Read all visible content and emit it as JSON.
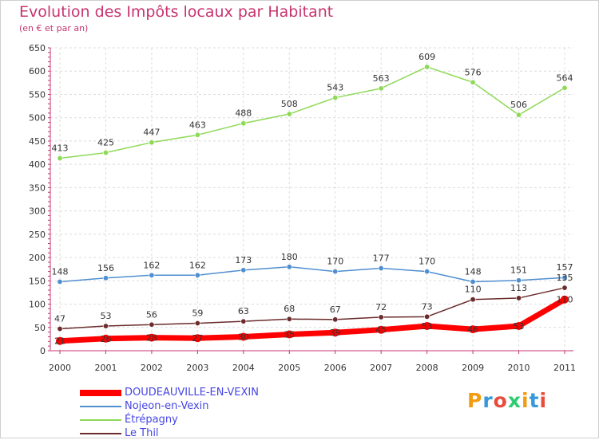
{
  "header": {
    "title": "Evolution des Impôts locaux par Habitant",
    "subtitle": "(en € et par an)"
  },
  "logo": {
    "text": "Proxiti",
    "colors": [
      "#f39c12",
      "#3498db",
      "#e74c3c",
      "#2ecc71"
    ]
  },
  "chart_data": {
    "type": "line",
    "x": [
      "2000",
      "2001",
      "2002",
      "2003",
      "2004",
      "2005",
      "2006",
      "2007",
      "2008",
      "2009",
      "2010",
      "2011"
    ],
    "ylim": [
      0,
      650
    ],
    "yticks": [
      "0",
      "50",
      "100",
      "150",
      "200",
      "250",
      "300",
      "350",
      "400",
      "450",
      "500",
      "550",
      "600",
      "650"
    ],
    "grid": true,
    "legend_position": "bottom-left",
    "series": [
      {
        "name": "DOUDEAUVILLE-EN-VEXIN",
        "color": "#ff0000",
        "values": [
          21,
          26,
          28,
          27,
          30,
          35,
          39,
          45,
          53,
          46,
          53,
          110
        ],
        "labels": [
          "21",
          "26",
          "28",
          "27",
          "30",
          "35",
          "39",
          "45",
          "53",
          "46",
          "53",
          "110"
        ]
      },
      {
        "name": "Nojeon-en-Vexin",
        "color": "#4f8fd0",
        "values": [
          148,
          156,
          162,
          162,
          173,
          180,
          170,
          177,
          170,
          148,
          151,
          157
        ],
        "labels": [
          "148",
          "156",
          "162",
          "162",
          "173",
          "180",
          "170",
          "177",
          "170",
          "148",
          "151",
          "157"
        ]
      },
      {
        "name": "Étrépagny",
        "color": "#8ed957",
        "values": [
          413,
          425,
          447,
          463,
          488,
          508,
          543,
          563,
          609,
          576,
          506,
          564
        ],
        "labels": [
          "413",
          "425",
          "447",
          "463",
          "488",
          "508",
          "543",
          "563",
          "609",
          "576",
          "506",
          "564"
        ]
      },
      {
        "name": "Le Thil",
        "color": "#6b2b2b",
        "values": [
          47,
          53,
          56,
          59,
          63,
          68,
          67,
          72,
          73,
          110,
          113,
          135
        ],
        "labels": [
          "47",
          "53",
          "56",
          "59",
          "63",
          "68",
          "67",
          "72",
          "73",
          "110",
          "113",
          "135"
        ]
      }
    ]
  }
}
